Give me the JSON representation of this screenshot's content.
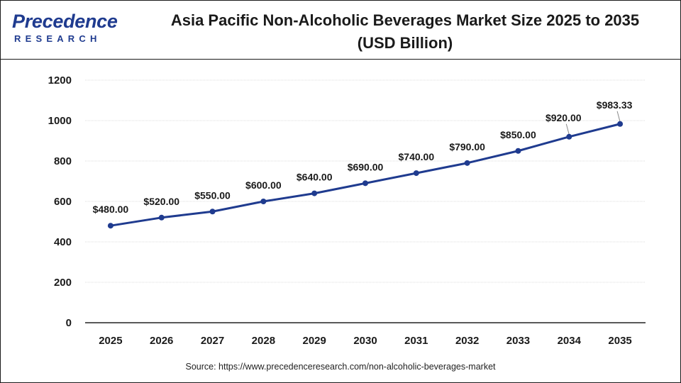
{
  "brand": {
    "name_main": "Precedence",
    "name_sub": "RESEARCH",
    "color": "#1f3b8f"
  },
  "header": {
    "title_line1": "Asia Pacific Non-Alcoholic Beverages Market Size 2025 to 2035",
    "title_line2": "(USD Billion)"
  },
  "footer": {
    "source": "Source: https://www.precedenceresearch.com/non-alcoholic-beverages-market"
  },
  "chart_data": {
    "type": "line",
    "title": "Asia Pacific Non-Alcoholic Beverages Market Size 2025 to 2035 (USD Billion)",
    "categories": [
      "2025",
      "2026",
      "2027",
      "2028",
      "2029",
      "2030",
      "2031",
      "2032",
      "2033",
      "2034",
      "2035"
    ],
    "series": [
      {
        "values": [
          480.0,
          520.0,
          550.0,
          600.0,
          640.0,
          690.0,
          740.0,
          790.0,
          850.0,
          920.0,
          983.33
        ],
        "labels": [
          "$480.00",
          "$520.00",
          "$550.00",
          "$600.00",
          "$640.00",
          "$690.00",
          "$740.00",
          "$790.00",
          "$850.00",
          "$920.00",
          "$983.33"
        ],
        "color": "#1f3b8f"
      }
    ],
    "ylim": [
      0,
      1200
    ],
    "yticks": [
      0,
      200,
      400,
      600,
      800,
      1000,
      1200
    ],
    "xlabel": "",
    "ylabel": "",
    "grid": true,
    "legend": "none"
  }
}
